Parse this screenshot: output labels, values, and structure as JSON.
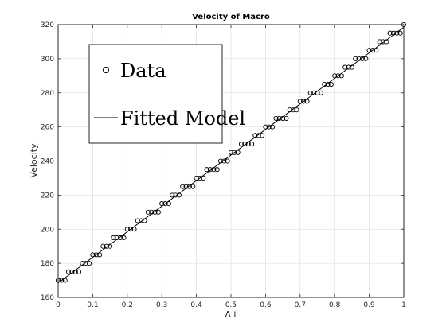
{
  "chart_data": {
    "type": "scatter",
    "title": "Velocity of Macro",
    "xlabel": "Δ t",
    "ylabel": "Velocity",
    "xlim": [
      0,
      1
    ],
    "ylim": [
      160,
      320
    ],
    "xticks": [
      0,
      0.1,
      0.2,
      0.3,
      0.4,
      0.5,
      0.6,
      0.7,
      0.8,
      0.9,
      1
    ],
    "xtick_labels": [
      "0",
      "0.1",
      "0.2",
      "0.3",
      "0.4",
      "0.5",
      "0.6",
      "0.7",
      "0.8",
      "0.9",
      "1"
    ],
    "yticks": [
      160,
      180,
      200,
      220,
      240,
      260,
      280,
      300,
      320
    ],
    "ytick_labels": [
      "160",
      "180",
      "200",
      "220",
      "240",
      "260",
      "280",
      "300",
      "320"
    ],
    "grid": true,
    "legend": {
      "placement": "top-left",
      "entries": [
        "Data",
        "Fitted Model"
      ]
    },
    "series": [
      {
        "name": "Data",
        "marker": "circle",
        "x": [
          0.0,
          0.01,
          0.02,
          0.03,
          0.04,
          0.05,
          0.06,
          0.07,
          0.08,
          0.09,
          0.1,
          0.11,
          0.12,
          0.13,
          0.14,
          0.15,
          0.16,
          0.17,
          0.18,
          0.19,
          0.2,
          0.21,
          0.22,
          0.23,
          0.24,
          0.25,
          0.26,
          0.27,
          0.28,
          0.29,
          0.3,
          0.31,
          0.32,
          0.33,
          0.34,
          0.35,
          0.36,
          0.37,
          0.38,
          0.39,
          0.4,
          0.41,
          0.42,
          0.43,
          0.44,
          0.45,
          0.46,
          0.47,
          0.48,
          0.49,
          0.5,
          0.51,
          0.52,
          0.53,
          0.54,
          0.55,
          0.56,
          0.57,
          0.58,
          0.59,
          0.6,
          0.61,
          0.62,
          0.63,
          0.64,
          0.65,
          0.66,
          0.67,
          0.68,
          0.69,
          0.7,
          0.71,
          0.72,
          0.73,
          0.74,
          0.75,
          0.76,
          0.77,
          0.78,
          0.79,
          0.8,
          0.81,
          0.82,
          0.83,
          0.84,
          0.85,
          0.86,
          0.87,
          0.88,
          0.89,
          0.9,
          0.91,
          0.92,
          0.93,
          0.94,
          0.95,
          0.96,
          0.97,
          0.98,
          0.99,
          1.0
        ],
        "y": [
          170,
          170,
          170,
          175,
          175,
          175,
          175,
          180,
          180,
          180,
          185,
          185,
          185,
          190,
          190,
          190,
          195,
          195,
          195,
          195,
          200,
          200,
          200,
          205,
          205,
          205,
          210,
          210,
          210,
          210,
          215,
          215,
          215,
          220,
          220,
          220,
          225,
          225,
          225,
          225,
          230,
          230,
          230,
          235,
          235,
          235,
          235,
          240,
          240,
          240,
          245,
          245,
          245,
          250,
          250,
          250,
          250,
          255,
          255,
          255,
          260,
          260,
          260,
          265,
          265,
          265,
          265,
          270,
          270,
          270,
          275,
          275,
          275,
          280,
          280,
          280,
          280,
          285,
          285,
          285,
          290,
          290,
          290,
          295,
          295,
          295,
          300,
          300,
          300,
          300,
          305,
          305,
          305,
          310,
          310,
          310,
          315,
          315,
          315,
          315,
          320
        ]
      },
      {
        "name": "Fitted Model",
        "type": "line",
        "x": [
          0,
          1
        ],
        "y": [
          168.5,
          318.5
        ]
      }
    ]
  },
  "colors": {
    "data": "#000000",
    "grid": "#d9d9d9",
    "axes": "#262626"
  }
}
